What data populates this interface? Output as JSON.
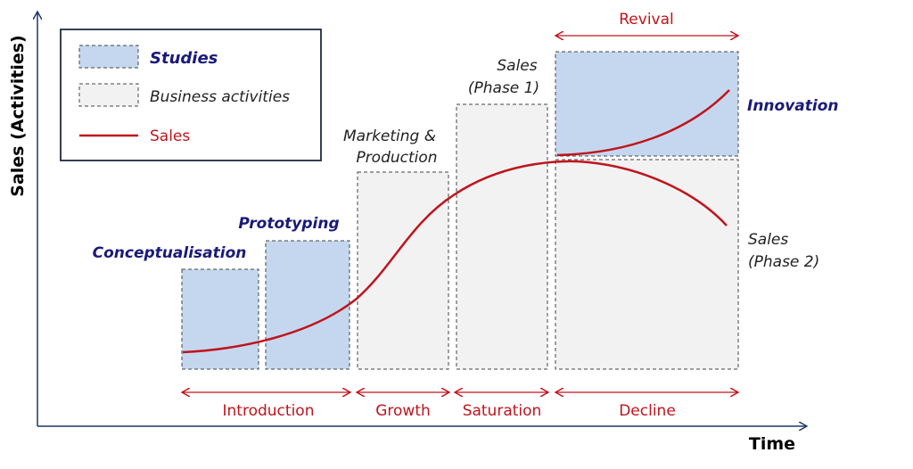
{
  "axes": {
    "x_label": "Time",
    "y_label": "Sales (Activities)"
  },
  "legend": {
    "studies": "Studies",
    "business": "Business activities",
    "sales": "Sales"
  },
  "studies": {
    "conceptualisation": "Conceptualisation",
    "prototyping": "Prototyping",
    "innovation": "Innovation"
  },
  "business": {
    "marketing_line1": "Marketing &",
    "marketing_line2": "Production",
    "sales1_line1": "Sales",
    "sales1_line2": "(Phase 1)",
    "sales2_line1": "Sales",
    "sales2_line2": "(Phase 2)"
  },
  "phases": {
    "introduction": "Introduction",
    "growth": "Growth",
    "saturation": "Saturation",
    "decline": "Decline",
    "revival": "Revival"
  },
  "colors": {
    "study_fill": "#c5d7ef",
    "business_fill": "#f2f2f2",
    "sales_line": "#c0141c",
    "axis": "#1f3864",
    "study_text": "#1a1a7a"
  }
}
